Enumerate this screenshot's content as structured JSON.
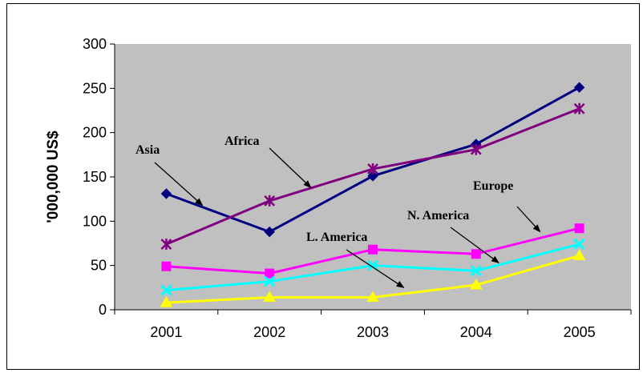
{
  "chart_data": {
    "type": "line",
    "title": "",
    "xlabel": "",
    "ylabel": "'000,000 US$",
    "categories": [
      "2001",
      "2002",
      "2003",
      "2004",
      "2005"
    ],
    "ylim": [
      0,
      300
    ],
    "yticks": [
      0,
      50,
      100,
      150,
      200,
      250,
      300
    ],
    "grid": false,
    "plot_background": "#C0C0C0",
    "legend": "none",
    "series": [
      {
        "name": "Asia",
        "values": [
          131,
          88,
          151,
          187,
          251
        ],
        "color": "#000080",
        "marker": "diamond"
      },
      {
        "name": "Africa",
        "values": [
          74,
          123,
          159,
          181,
          227
        ],
        "color": "#800080",
        "marker": "star"
      },
      {
        "name": "Europe",
        "values": [
          49,
          41,
          68,
          63,
          92
        ],
        "color": "#FF00FF",
        "marker": "square"
      },
      {
        "name": "N. America",
        "values": [
          22,
          32,
          50,
          44,
          74
        ],
        "color": "#00FFFF",
        "marker": "x"
      },
      {
        "name": "L. America",
        "values": [
          8,
          14,
          14,
          28,
          61
        ],
        "color": "#FFFF00",
        "marker": "triangle"
      }
    ],
    "annotations": [
      {
        "text": "Asia",
        "series": "Asia"
      },
      {
        "text": "Africa",
        "series": "Africa"
      },
      {
        "text": "Europe",
        "series": "Europe"
      },
      {
        "text": "N.  America",
        "series": "N. America"
      },
      {
        "text": "L.  America",
        "series": "L. America"
      }
    ]
  }
}
